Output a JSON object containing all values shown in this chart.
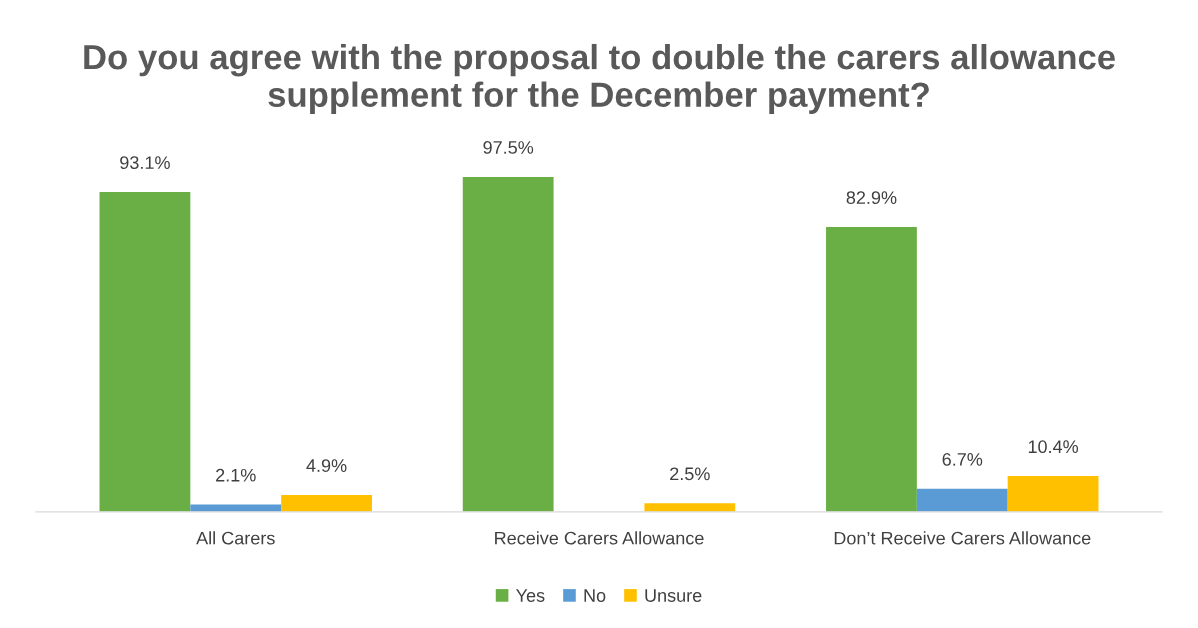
{
  "chart_data": {
    "type": "bar",
    "title": "Do you agree with the proposal to double the carers allowance supplement for the December payment?",
    "categories": [
      "All Carers",
      "Receive Carers Allowance",
      "Don’t Receive Carers Allowance"
    ],
    "series": [
      {
        "name": "Yes",
        "color": "#6aaf45",
        "values": [
          93.1,
          97.5,
          82.9
        ],
        "value_labels": [
          "93.1%",
          "97.5%",
          "82.9%"
        ]
      },
      {
        "name": "No",
        "color": "#5b9bd5",
        "values": [
          2.1,
          null,
          6.7
        ],
        "value_labels": [
          "2.1%",
          null,
          "6.7%"
        ]
      },
      {
        "name": "Unsure",
        "color": "#ffc000",
        "values": [
          4.9,
          2.5,
          10.4
        ],
        "value_labels": [
          "4.9%",
          "2.5%",
          "10.4%"
        ]
      }
    ],
    "legend": "bottom",
    "grid": false,
    "tick_labels": "x"
  }
}
